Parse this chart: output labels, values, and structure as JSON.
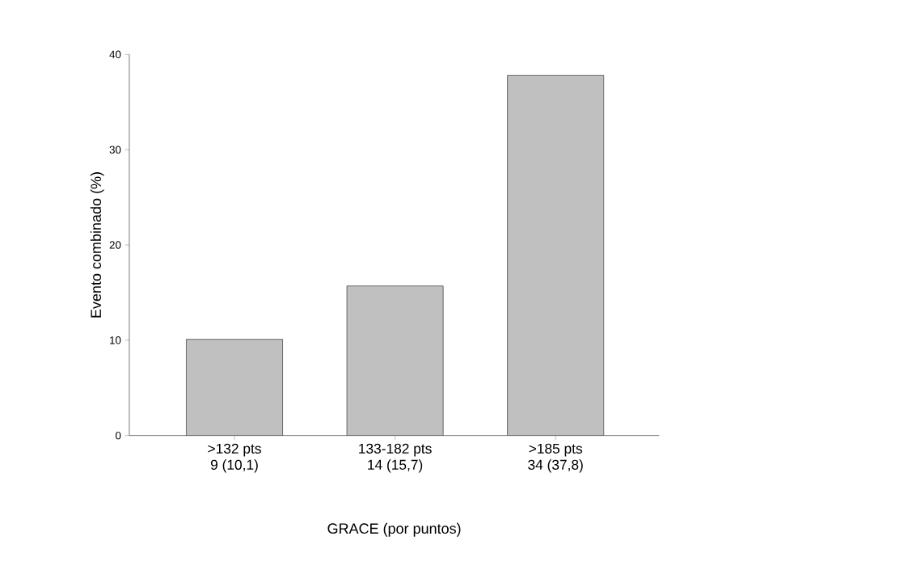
{
  "chart_data": {
    "type": "bar",
    "xlabel": "GRACE (por puntos)",
    "ylabel": "Evento combinado (%)",
    "categories": [
      ">132 pts\n9 (10,1)",
      "133-182 pts\n14 (15,7)",
      ">185 pts\n34 (37,8)"
    ],
    "values": [
      10.1,
      15.7,
      37.8
    ],
    "color": "#c0c0c0",
    "ylim": [
      0,
      40
    ],
    "yticks": [
      0,
      10,
      20,
      30,
      40
    ]
  }
}
